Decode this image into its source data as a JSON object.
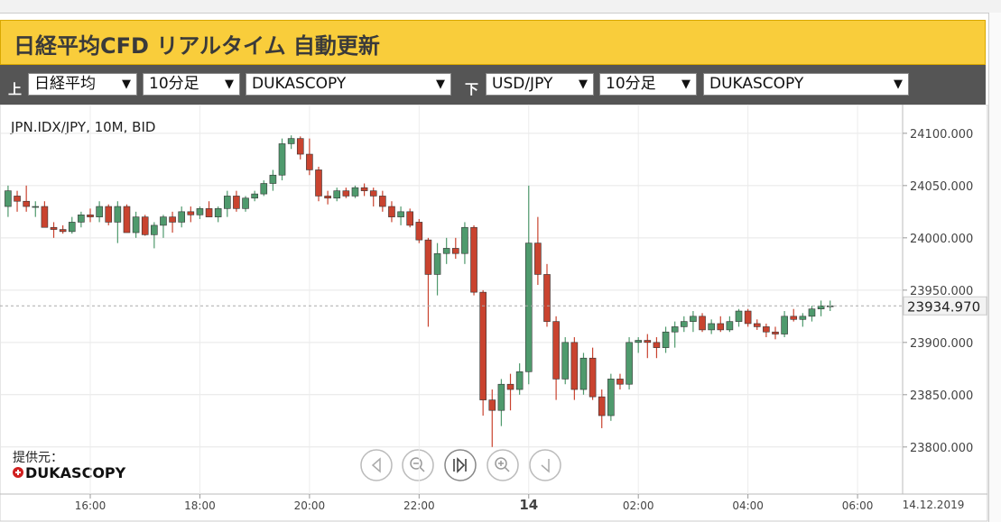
{
  "header": {
    "title": "日経平均CFD リアルタイム 自動更新"
  },
  "toolbar": {
    "upper_label": "上",
    "upper": [
      "日経平均",
      "10分足",
      "DUKASCOPY"
    ],
    "lower_label": "下",
    "lower": [
      "USD/JPY",
      "10分足",
      "DUKASCOPY"
    ]
  },
  "provider": {
    "label": "提供元：",
    "name": "DUKASCOPY"
  },
  "chart_data": {
    "type": "candlestick",
    "title": "JPN.IDX/JPY, 10M, BID",
    "date": "14.12.2019",
    "up_color": "#4f9a6d",
    "down_color": "#c9432f",
    "grid": true,
    "ylim": [
      23755,
      24124
    ],
    "yticks": [
      {
        "value": 23800,
        "label": "23800.000"
      },
      {
        "value": 23850,
        "label": "23850.000"
      },
      {
        "value": 23900,
        "label": "23900.000"
      },
      {
        "value": 23950,
        "label": "23950.000"
      },
      {
        "value": 24000,
        "label": "24000.000"
      },
      {
        "value": 24050,
        "label": "24050.000"
      },
      {
        "value": 24100,
        "label": "24100.000"
      }
    ],
    "xticks": [
      "16:00",
      "18:00",
      "20:00",
      "22:00",
      {
        "value": "00:00",
        "label": "14"
      },
      "02:00",
      "04:00",
      "06:00"
    ],
    "last_price": {
      "value": 23934.97,
      "label": "23934.970"
    },
    "x": [
      "14:30",
      "14:40",
      "14:50",
      "15:00",
      "15:10",
      "15:20",
      "15:30",
      "15:40",
      "15:50",
      "16:00",
      "16:10",
      "16:20",
      "16:30",
      "16:40",
      "16:50",
      "17:00",
      "17:10",
      "17:20",
      "17:30",
      "17:40",
      "17:50",
      "18:00",
      "18:10",
      "18:20",
      "18:30",
      "18:40",
      "18:50",
      "19:00",
      "19:10",
      "19:20",
      "19:30",
      "19:40",
      "19:50",
      "20:00",
      "20:10",
      "20:20",
      "20:30",
      "20:40",
      "20:50",
      "21:00",
      "21:10",
      "21:20",
      "21:30",
      "21:40",
      "21:50",
      "22:00",
      "22:10",
      "22:20",
      "22:30",
      "22:40",
      "22:50",
      "23:00",
      "23:10",
      "23:20",
      "23:30",
      "23:40",
      "23:50",
      "00:00",
      "00:10",
      "00:20",
      "00:30",
      "00:40",
      "00:50",
      "01:00",
      "01:10",
      "01:20",
      "01:30",
      "01:40",
      "01:50",
      "02:00",
      "02:10",
      "02:20",
      "02:30",
      "02:40",
      "02:50",
      "03:00",
      "03:10",
      "03:20",
      "03:30",
      "03:40",
      "03:50",
      "04:00",
      "04:10",
      "04:20",
      "04:30",
      "04:40",
      "04:50",
      "05:00",
      "05:10",
      "05:20",
      "05:30"
    ],
    "open": [
      24030,
      24040,
      24035,
      24030,
      24030,
      24010,
      24008,
      24006,
      24015,
      24022,
      24020,
      24030,
      24015,
      24030,
      24005,
      24020,
      24003,
      24012,
      24020,
      24015,
      24025,
      24022,
      24028,
      24020,
      24028,
      24040,
      24028,
      24038,
      24042,
      24052,
      24060,
      24090,
      24095,
      24080,
      24065,
      24040,
      24038,
      24045,
      24040,
      24048,
      24045,
      24040,
      24030,
      24020,
      24025,
      24015,
      23998,
      23965,
      23985,
      23990,
      23985,
      24010,
      23948,
      23845,
      23835,
      23860,
      23855,
      23872,
      23995,
      23965,
      23920,
      23865,
      23900,
      23855,
      23885,
      23848,
      23830,
      23865,
      23860,
      23900,
      23902,
      23900,
      23895,
      23910,
      23915,
      23920,
      23925,
      23912,
      23918,
      23912,
      23920,
      23930,
      23918,
      23915,
      23910,
      23908,
      23925,
      23922,
      23925,
      23932,
      23935
    ],
    "high": [
      24050,
      24045,
      24050,
      24035,
      24035,
      24015,
      24012,
      24020,
      24025,
      24028,
      24035,
      24032,
      24035,
      24032,
      24025,
      24022,
      24015,
      24022,
      24025,
      24030,
      24030,
      24030,
      24035,
      24030,
      24045,
      24045,
      24040,
      24045,
      24055,
      24065,
      24095,
      24098,
      24097,
      24095,
      24068,
      24045,
      24048,
      24048,
      24050,
      24052,
      24048,
      24045,
      24035,
      24030,
      24028,
      24018,
      24000,
      23995,
      24000,
      24000,
      24015,
      24012,
      23950,
      23855,
      23865,
      23870,
      23880,
      24050,
      24020,
      23975,
      23925,
      23905,
      23905,
      23890,
      23895,
      23855,
      23870,
      23870,
      23905,
      23905,
      23908,
      23905,
      23915,
      23920,
      23925,
      23930,
      23928,
      23922,
      23925,
      23925,
      23932,
      23932,
      23922,
      23918,
      23915,
      23930,
      23932,
      23928,
      23935,
      23940,
      23940
    ],
    "low": [
      24020,
      24025,
      24025,
      24020,
      24010,
      24000,
      24004,
      24004,
      24010,
      24015,
      24015,
      24012,
      23995,
      24005,
      24000,
      24002,
      23990,
      24000,
      24005,
      24010,
      24015,
      24018,
      24020,
      24015,
      24020,
      24025,
      24025,
      24035,
      24040,
      24045,
      24055,
      24085,
      24075,
      24060,
      24035,
      24032,
      24035,
      24038,
      24038,
      24040,
      24030,
      24025,
      24015,
      24012,
      24010,
      23995,
      23915,
      23945,
      23975,
      23980,
      23975,
      23945,
      23830,
      23800,
      23820,
      23835,
      23850,
      23860,
      23955,
      23915,
      23845,
      23860,
      23845,
      23850,
      23845,
      23818,
      23825,
      23855,
      23855,
      23890,
      23885,
      23885,
      23890,
      23895,
      23910,
      23910,
      23910,
      23908,
      23910,
      23910,
      23915,
      23915,
      23912,
      23905,
      23903,
      23905,
      23920,
      23915,
      23920,
      23925,
      23930
    ],
    "close": [
      24045,
      24035,
      24030,
      24030,
      24010,
      24008,
      24006,
      24015,
      24022,
      24020,
      24030,
      24015,
      24030,
      24005,
      24020,
      24003,
      24012,
      24020,
      24015,
      24025,
      24022,
      24028,
      24020,
      24028,
      24040,
      24028,
      24038,
      24042,
      24052,
      24060,
      24090,
      24095,
      24080,
      24065,
      24040,
      24038,
      24045,
      24040,
      24048,
      24045,
      24040,
      24030,
      24020,
      24025,
      24012,
      23998,
      23965,
      23985,
      23990,
      23985,
      24010,
      23948,
      23845,
      23835,
      23860,
      23855,
      23872,
      23995,
      23965,
      23920,
      23865,
      23900,
      23855,
      23885,
      23848,
      23830,
      23865,
      23860,
      23900,
      23902,
      23900,
      23895,
      23910,
      23915,
      23920,
      23925,
      23912,
      23918,
      23912,
      23920,
      23930,
      23918,
      23915,
      23910,
      23908,
      23925,
      23922,
      23925,
      23932,
      23935,
      23935
    ]
  }
}
